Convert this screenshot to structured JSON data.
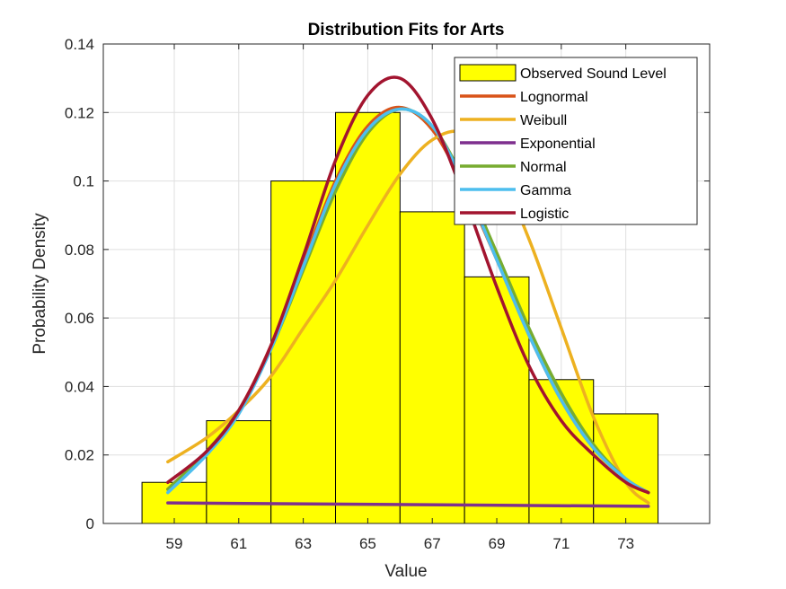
{
  "chart_data": {
    "type": "bar",
    "title": "Distribution Fits for Arts",
    "xlabel": "Value",
    "ylabel": "Probability Density",
    "xlim": [
      56.8,
      75.6
    ],
    "ylim": [
      0,
      0.14
    ],
    "xticks": [
      59,
      61,
      63,
      65,
      67,
      69,
      71,
      73
    ],
    "yticks": [
      0,
      0.02,
      0.04,
      0.06,
      0.08,
      0.1,
      0.12,
      0.14
    ],
    "ytick_labels": [
      "0",
      "0.02",
      "0.04",
      "0.06",
      "0.08",
      "0.1",
      "0.12",
      "0.14"
    ],
    "grid": true,
    "legend_position": "top-right",
    "histogram": {
      "name": "Observed Sound Level",
      "color": "#ffff00",
      "bins": [
        {
          "start": 58,
          "end": 60,
          "value": 0.012
        },
        {
          "start": 60,
          "end": 62,
          "value": 0.03
        },
        {
          "start": 62,
          "end": 64,
          "value": 0.1
        },
        {
          "start": 64,
          "end": 66,
          "value": 0.12
        },
        {
          "start": 66,
          "end": 68,
          "value": 0.091
        },
        {
          "start": 68,
          "end": 70,
          "value": 0.072
        },
        {
          "start": 70,
          "end": 72,
          "value": 0.042
        },
        {
          "start": 72,
          "end": 74,
          "value": 0.032
        }
      ]
    },
    "series": [
      {
        "name": "Lognormal",
        "color": "#d95319",
        "x": [
          58.8,
          60,
          61,
          62,
          63,
          64,
          65,
          66,
          67,
          68,
          69,
          70,
          71,
          72,
          73,
          73.7
        ],
        "y": [
          0.01,
          0.021,
          0.033,
          0.052,
          0.076,
          0.1,
          0.116,
          0.1215,
          0.115,
          0.098,
          0.077,
          0.055,
          0.036,
          0.022,
          0.013,
          0.009
        ]
      },
      {
        "name": "Weibull",
        "color": "#edb120",
        "x": [
          58.8,
          60,
          61,
          62,
          63,
          64,
          65,
          66,
          67,
          68,
          69,
          70,
          71,
          72,
          73,
          73.7
        ],
        "y": [
          0.018,
          0.025,
          0.033,
          0.043,
          0.057,
          0.071,
          0.087,
          0.102,
          0.112,
          0.114,
          0.104,
          0.083,
          0.057,
          0.031,
          0.012,
          0.006
        ]
      },
      {
        "name": "Exponential",
        "color": "#7e2f8e",
        "x": [
          58.8,
          73.7
        ],
        "y": [
          0.006,
          0.005
        ]
      },
      {
        "name": "Normal",
        "color": "#77ac30",
        "x": [
          58.8,
          60,
          61,
          62,
          63,
          64,
          65,
          66,
          67,
          68,
          69,
          70,
          71,
          72,
          73,
          73.7
        ],
        "y": [
          0.01,
          0.021,
          0.033,
          0.051,
          0.074,
          0.097,
          0.114,
          0.121,
          0.116,
          0.1,
          0.079,
          0.057,
          0.038,
          0.023,
          0.013,
          0.009
        ]
      },
      {
        "name": "Gamma",
        "color": "#4dbeee",
        "x": [
          58.8,
          60,
          61,
          62,
          63,
          64,
          65,
          66,
          67,
          68,
          69,
          70,
          71,
          72,
          73,
          73.7
        ],
        "y": [
          0.009,
          0.02,
          0.032,
          0.051,
          0.075,
          0.099,
          0.115,
          0.121,
          0.116,
          0.099,
          0.077,
          0.055,
          0.036,
          0.022,
          0.013,
          0.009
        ]
      },
      {
        "name": "Logistic",
        "color": "#a2142f",
        "x": [
          58.8,
          60,
          61,
          62,
          63,
          64,
          65,
          66,
          67,
          68,
          69,
          70,
          71,
          72,
          73,
          73.7
        ],
        "y": [
          0.012,
          0.021,
          0.033,
          0.052,
          0.078,
          0.106,
          0.125,
          0.13,
          0.118,
          0.095,
          0.069,
          0.046,
          0.03,
          0.02,
          0.012,
          0.009
        ]
      }
    ]
  }
}
